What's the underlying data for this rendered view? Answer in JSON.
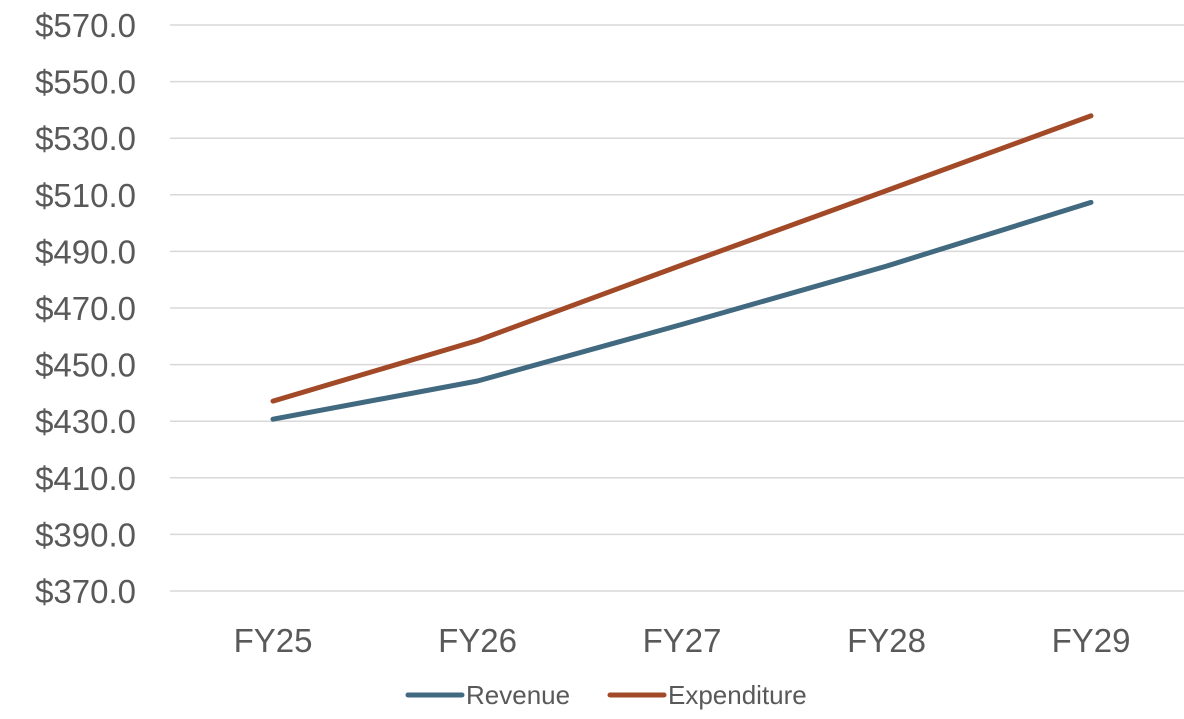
{
  "chart_data": {
    "type": "line",
    "title": "",
    "xlabel": "",
    "ylabel": "",
    "categories": [
      "FY25",
      "FY26",
      "FY27",
      "FY28",
      "FY29"
    ],
    "ylim": [
      370,
      570
    ],
    "yticks": [
      570,
      550,
      530,
      510,
      490,
      470,
      450,
      430,
      410,
      390,
      370
    ],
    "ytick_labels": [
      "$570.0",
      "$550.0",
      "$530.0",
      "$510.0",
      "$490.0",
      "$470.0",
      "$450.0",
      "$430.0",
      "$410.0",
      "$390.0",
      "$370.0"
    ],
    "grid": true,
    "legend_position": "bottom",
    "series": [
      {
        "name": "Revenue",
        "color": "#41697f",
        "values": [
          430.7,
          444.2,
          464.2,
          484.8,
          507.3
        ]
      },
      {
        "name": "Expenditure",
        "color": "#a24a28",
        "values": [
          437.1,
          458.5,
          485.2,
          511.5,
          537.9
        ]
      }
    ]
  }
}
